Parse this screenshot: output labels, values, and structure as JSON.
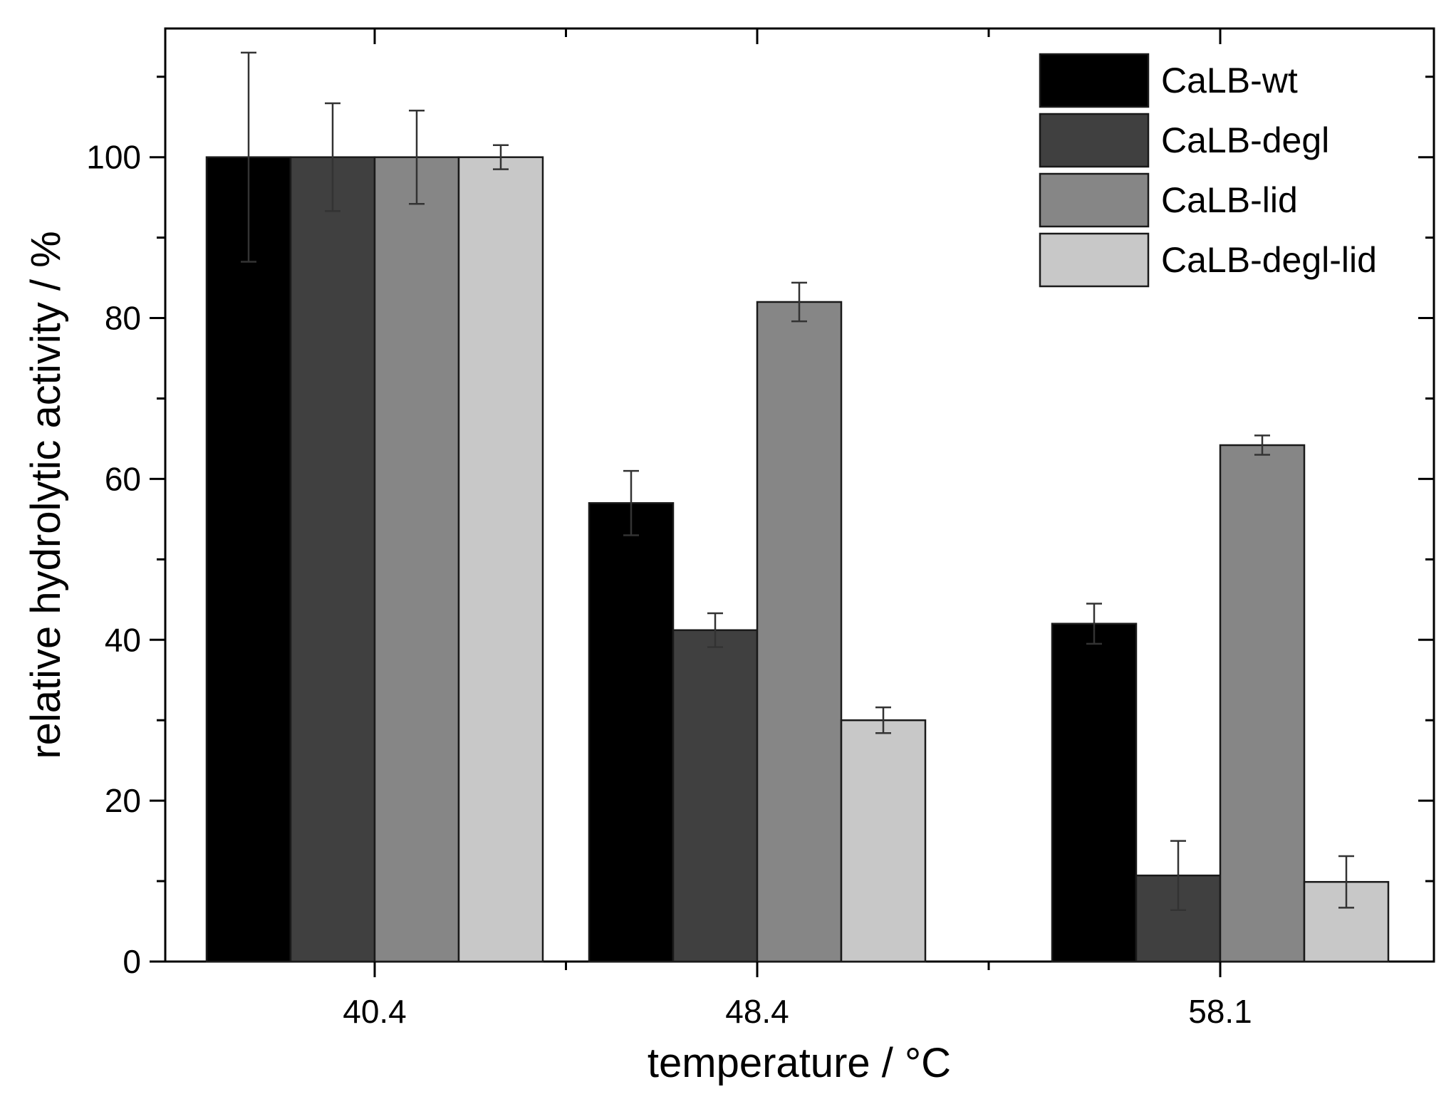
{
  "chart_data": {
    "type": "bar",
    "title": "",
    "xlabel": "temperature / °C",
    "ylabel": "relative hydrolytic activity / %",
    "categories": [
      "40.4",
      "48.4",
      "58.1"
    ],
    "ylim": [
      0,
      116
    ],
    "yticks": [
      0,
      20,
      40,
      60,
      80,
      100
    ],
    "yticks_minor": [
      10,
      30,
      50,
      70,
      90,
      110
    ],
    "grid": false,
    "legend_position": "top-right",
    "series": [
      {
        "name": "CaLB-wt",
        "color": "#000000",
        "values": [
          100,
          57,
          42
        ],
        "errors": [
          13,
          4,
          2.5
        ]
      },
      {
        "name": "CaLB-degl",
        "color": "#404040",
        "values": [
          100,
          41.2,
          10.7
        ],
        "errors": [
          6.7,
          2.1,
          4.3
        ]
      },
      {
        "name": "CaLB-lid",
        "color": "#868686",
        "values": [
          100,
          82,
          64.2
        ],
        "errors": [
          5.8,
          2.4,
          1.2
        ]
      },
      {
        "name": "CaLB-degl-lid",
        "color": "#c8c8c8",
        "values": [
          100,
          30,
          9.9
        ],
        "errors": [
          1.5,
          1.6,
          3.2
        ]
      }
    ]
  }
}
